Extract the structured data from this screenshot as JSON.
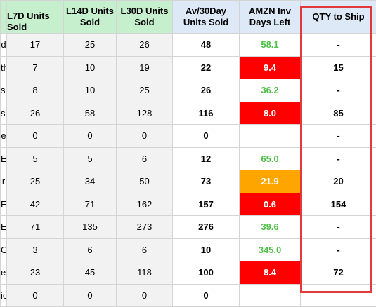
{
  "headers": {
    "stub": "",
    "l7d": "L7D Units Sold",
    "l14d": "L14D Units Sold",
    "l30d": "L30D Units Sold",
    "av30": "Av/30Day Units Sold",
    "amzn_days": "AMZN Inv Days Left",
    "qty_ship": "QTY to Ship"
  },
  "colors": {
    "header_green": "#c6efce",
    "header_blue": "#dde9f6",
    "days_good": "#4fbf46",
    "days_critical": "#ff0000",
    "days_warning": "#ffa500",
    "highlight_border": "#e0393e"
  },
  "rows": [
    {
      "stub": "d",
      "l7d": "17",
      "l14d": "25",
      "l30d": "26",
      "av30": "48",
      "days": "58.1",
      "days_status": "green",
      "ship": "-"
    },
    {
      "stub": "th",
      "l7d": "7",
      "l14d": "10",
      "l30d": "19",
      "av30": "22",
      "days": "9.4",
      "days_status": "red",
      "ship": "15"
    },
    {
      "stub": "se",
      "l7d": "8",
      "l14d": "10",
      "l30d": "25",
      "av30": "26",
      "days": "36.2",
      "days_status": "green",
      "ship": "-"
    },
    {
      "stub": "se",
      "l7d": "26",
      "l14d": "58",
      "l30d": "128",
      "av30": "116",
      "days": "8.0",
      "days_status": "red",
      "ship": "85"
    },
    {
      "stub": "e",
      "l7d": "0",
      "l14d": "0",
      "l30d": "0",
      "av30": "0",
      "days": "",
      "days_status": "none",
      "ship": "-"
    },
    {
      "stub": "E",
      "l7d": "5",
      "l14d": "5",
      "l30d": "6",
      "av30": "12",
      "days": "65.0",
      "days_status": "green",
      "ship": "-"
    },
    {
      "stub": "r",
      "l7d": "25",
      "l14d": "34",
      "l30d": "50",
      "av30": "73",
      "days": "21.9",
      "days_status": "orange",
      "ship": "20"
    },
    {
      "stub": "E",
      "l7d": "42",
      "l14d": "71",
      "l30d": "162",
      "av30": "157",
      "days": "0.6",
      "days_status": "red",
      "ship": "154"
    },
    {
      "stub": "E",
      "l7d": "71",
      "l14d": "135",
      "l30d": "273",
      "av30": "276",
      "days": "39.6",
      "days_status": "green",
      "ship": "-"
    },
    {
      "stub": "Cl",
      "l7d": "3",
      "l14d": "6",
      "l30d": "6",
      "av30": "10",
      "days": "345.0",
      "days_status": "green",
      "ship": "-"
    },
    {
      "stub": "es",
      "l7d": "23",
      "l14d": "45",
      "l30d": "118",
      "av30": "100",
      "days": "8.4",
      "days_status": "red",
      "ship": "72"
    },
    {
      "stub": "ic",
      "l7d": "0",
      "l14d": "0",
      "l30d": "0",
      "av30": "0",
      "days": "",
      "days_status": "none",
      "ship": ""
    }
  ]
}
